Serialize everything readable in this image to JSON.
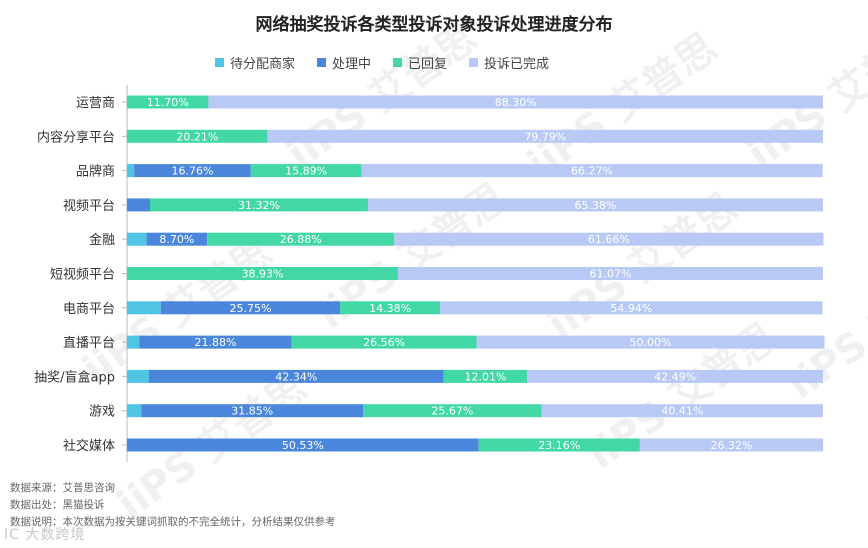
{
  "chart_data": {
    "type": "bar",
    "orientation": "horizontal",
    "stacked": true,
    "percent": true,
    "title": "网络抽奖投诉各类型投诉对象投诉处理进度分布",
    "categories": [
      "运营商",
      "内容分享平台",
      "品牌商",
      "视频平台",
      "金融",
      "短视频平台",
      "电商平台",
      "直播平台",
      "抽奖/盲盒app",
      "游戏",
      "社交媒体"
    ],
    "series": [
      {
        "name": "待分配商家",
        "color": "#4fc4e3",
        "values": [
          0.0,
          0.0,
          1.03,
          0.0,
          2.82,
          0.0,
          4.86,
          1.78,
          3.16,
          2.07,
          0.0
        ]
      },
      {
        "name": "处理中",
        "color": "#4a86dc",
        "values": [
          0.0,
          0.0,
          16.76,
          3.3,
          8.7,
          0.0,
          25.75,
          21.88,
          42.34,
          31.85,
          50.53
        ]
      },
      {
        "name": "已回复",
        "color": "#42d8a6",
        "values": [
          11.7,
          20.21,
          15.89,
          31.32,
          26.88,
          38.93,
          14.38,
          26.56,
          12.01,
          25.67,
          23.16
        ]
      },
      {
        "name": "投诉已完成",
        "color": "#b8c9f5",
        "values": [
          88.3,
          79.79,
          66.27,
          65.38,
          61.66,
          61.07,
          54.94,
          50.0,
          42.49,
          40.41,
          26.32
        ]
      }
    ],
    "data_labels": [
      [
        "",
        "",
        "11.70%",
        "88.30%"
      ],
      [
        "",
        "",
        "20.21%",
        "79.79%"
      ],
      [
        "",
        "16.76%",
        "15.89%",
        "66.27%"
      ],
      [
        "",
        "",
        "31.32%",
        "65.38%"
      ],
      [
        "",
        "8.70%",
        "26.88%",
        "61.66%"
      ],
      [
        "",
        "",
        "38.93%",
        "61.07%"
      ],
      [
        "",
        "25.75%",
        "14.38%",
        "54.94%"
      ],
      [
        "",
        "21.88%",
        "26.56%",
        "50.00%"
      ],
      [
        "",
        "42.34%",
        "12.01%",
        "42.49%"
      ],
      [
        "",
        "31.85%",
        "25.67%",
        "40.41%"
      ],
      [
        "",
        "50.53%",
        "23.16%",
        "26.32%"
      ]
    ],
    "xlim": [
      0,
      100
    ],
    "legend_position": "top"
  },
  "notes": {
    "source": "数据来源：艾普思咨询",
    "origin": "数据出处：黑猫投诉",
    "description": "数据说明：本次数据为按关键词抓取的不完全统计，分析结果仅供参考"
  },
  "watermark": "iiPS 艾普思",
  "corner_watermark": "IC 大数跨境"
}
